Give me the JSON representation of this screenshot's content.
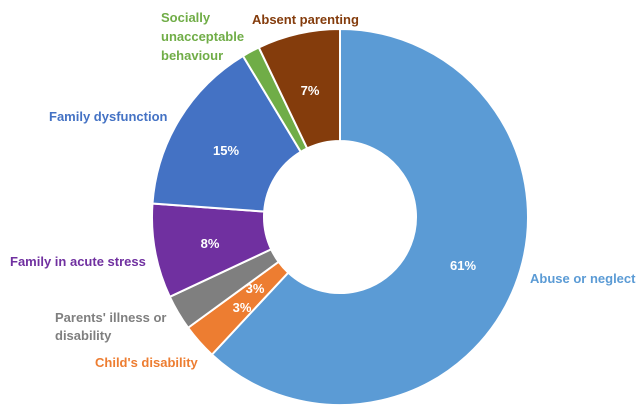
{
  "chart_data": {
    "type": "pie",
    "style": "donut",
    "slices": [
      {
        "label": "Abuse or neglect",
        "value": 61,
        "value_label": "61%",
        "color": "#5B9BD5"
      },
      {
        "label": "Child's disability",
        "value": 3,
        "value_label": "3%",
        "color": "#ED7D31"
      },
      {
        "label": "Parents' illness or disability",
        "value": 3,
        "value_label": "3%",
        "color": "#7F7F7F"
      },
      {
        "label": "Family in acute stress",
        "value": 8,
        "value_label": "8%",
        "color": "#7030A0"
      },
      {
        "label": "Family dysfunction",
        "value": 15,
        "value_label": "15%",
        "color": "#4472C4"
      },
      {
        "label": "Socially unacceptable behaviour",
        "value": 1.5,
        "value_label": "",
        "color": "#70AD47"
      },
      {
        "label": "Absent parenting",
        "value": 7,
        "value_label": "7%",
        "color": "#843C0C"
      }
    ],
    "legend": "none",
    "labels_outside": true
  }
}
